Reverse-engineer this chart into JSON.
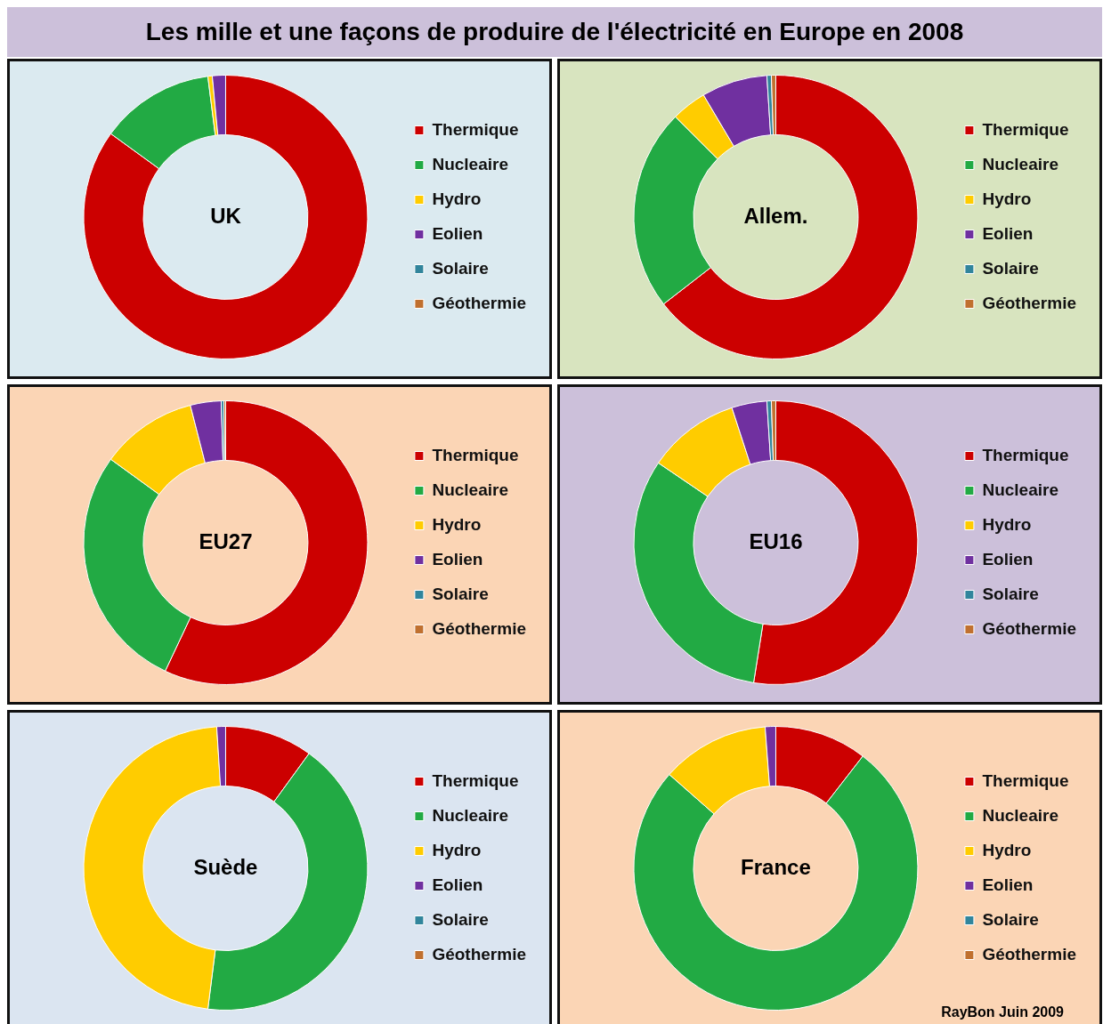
{
  "chart_data": [
    {
      "type": "donut",
      "title": "UK",
      "annotations": [
        "Les mille et une façons de produire de l'électricité en Europe en 2008"
      ],
      "categories": [
        "Thermique",
        "Nucleaire",
        "Hydro",
        "Eolien",
        "Solaire",
        "Géothermie"
      ],
      "values": [
        85,
        13,
        0.5,
        1.5,
        0,
        0
      ],
      "colors": [
        "#cc0000",
        "#22aa44",
        "#ffcc00",
        "#7030a0",
        "#31859c",
        "#c0702f"
      ],
      "legend": "right"
    },
    {
      "type": "donut",
      "title": "Allem.",
      "categories": [
        "Thermique",
        "Nucleaire",
        "Hydro",
        "Eolien",
        "Solaire",
        "Géothermie"
      ],
      "values": [
        64.5,
        23,
        4,
        7.5,
        0.5,
        0.5
      ],
      "colors": [
        "#cc0000",
        "#22aa44",
        "#ffcc00",
        "#7030a0",
        "#31859c",
        "#c0702f"
      ],
      "legend": "right"
    },
    {
      "type": "donut",
      "title": "EU27",
      "categories": [
        "Thermique",
        "Nucleaire",
        "Hydro",
        "Eolien",
        "Solaire",
        "Géothermie"
      ],
      "values": [
        57,
        28,
        11,
        3.5,
        0.3,
        0.2
      ],
      "colors": [
        "#cc0000",
        "#22aa44",
        "#ffcc00",
        "#7030a0",
        "#31859c",
        "#c0702f"
      ],
      "legend": "right"
    },
    {
      "type": "donut",
      "title": "EU16",
      "categories": [
        "Thermique",
        "Nucleaire",
        "Hydro",
        "Eolien",
        "Solaire",
        "Géothermie"
      ],
      "values": [
        52.5,
        32,
        10.5,
        4,
        0.5,
        0.5
      ],
      "colors": [
        "#cc0000",
        "#22aa44",
        "#ffcc00",
        "#7030a0",
        "#31859c",
        "#c0702f"
      ],
      "legend": "right"
    },
    {
      "type": "donut",
      "title": "Suède",
      "categories": [
        "Thermique",
        "Nucleaire",
        "Hydro",
        "Eolien",
        "Solaire",
        "Géothermie"
      ],
      "values": [
        10,
        42,
        47,
        1,
        0,
        0
      ],
      "colors": [
        "#cc0000",
        "#22aa44",
        "#ffcc00",
        "#7030a0",
        "#31859c",
        "#c0702f"
      ],
      "legend": "right"
    },
    {
      "type": "donut",
      "title": "France",
      "annotations": [
        "RayBon Juin 2009"
      ],
      "categories": [
        "Thermique",
        "Nucleaire",
        "Hydro",
        "Eolien",
        "Solaire",
        "Géothermie"
      ],
      "values": [
        10.5,
        76,
        12.3,
        1.2,
        0,
        0
      ],
      "colors": [
        "#cc0000",
        "#22aa44",
        "#ffcc00",
        "#7030a0",
        "#31859c",
        "#c0702f"
      ],
      "legend": "right"
    }
  ]
}
